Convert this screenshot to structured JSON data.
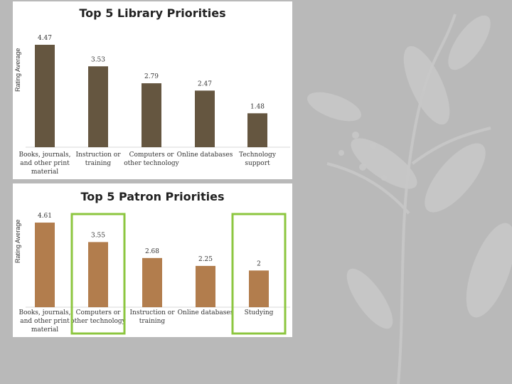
{
  "colors": {
    "background": "#b9b9b9",
    "library_bar": "#655640",
    "patron_bar": "#b27d4d",
    "highlight_box": "#8cc63f"
  },
  "chart_data": [
    {
      "type": "bar",
      "title": "Top 5 Library Priorities",
      "ylabel": "Rating Average",
      "categories": [
        "Books, journals, and other print material",
        "Instruction or training",
        "Computers or other technology",
        "Online databases",
        "Technology support"
      ],
      "categories_lines": [
        [
          "Books, journals,",
          "and other print",
          "material"
        ],
        [
          "Instruction or",
          "training"
        ],
        [
          "Computers or",
          "other technology"
        ],
        [
          "Online databases"
        ],
        [
          "Technology",
          "support"
        ]
      ],
      "values": [
        4.47,
        3.53,
        2.79,
        2.47,
        1.48
      ],
      "value_labels": [
        "4.47",
        "3.53",
        "2.79",
        "2.47",
        "1.48"
      ],
      "ylim": [
        0,
        4.5
      ],
      "grid": false,
      "legend": "none"
    },
    {
      "type": "bar",
      "title": "Top 5 Patron Priorities",
      "ylabel": "Rating Average",
      "categories": [
        "Books, journals, and other print material",
        "Computers or other technology",
        "Instruction or training",
        "Online databases",
        "Studying"
      ],
      "categories_lines": [
        [
          "Books, journals,",
          "and other print",
          "material"
        ],
        [
          "Computers or",
          "other technology"
        ],
        [
          "Instruction or",
          "training"
        ],
        [
          "Online databases"
        ],
        [
          "Studying"
        ]
      ],
      "values": [
        4.61,
        3.55,
        2.68,
        2.25,
        2
      ],
      "value_labels": [
        "4.61",
        "3.55",
        "2.68",
        "2.25",
        "2"
      ],
      "highlighted_categories": [
        "Computers or other technology",
        "Studying"
      ],
      "ylim": [
        0,
        4.65
      ],
      "grid": false,
      "legend": "none"
    }
  ]
}
